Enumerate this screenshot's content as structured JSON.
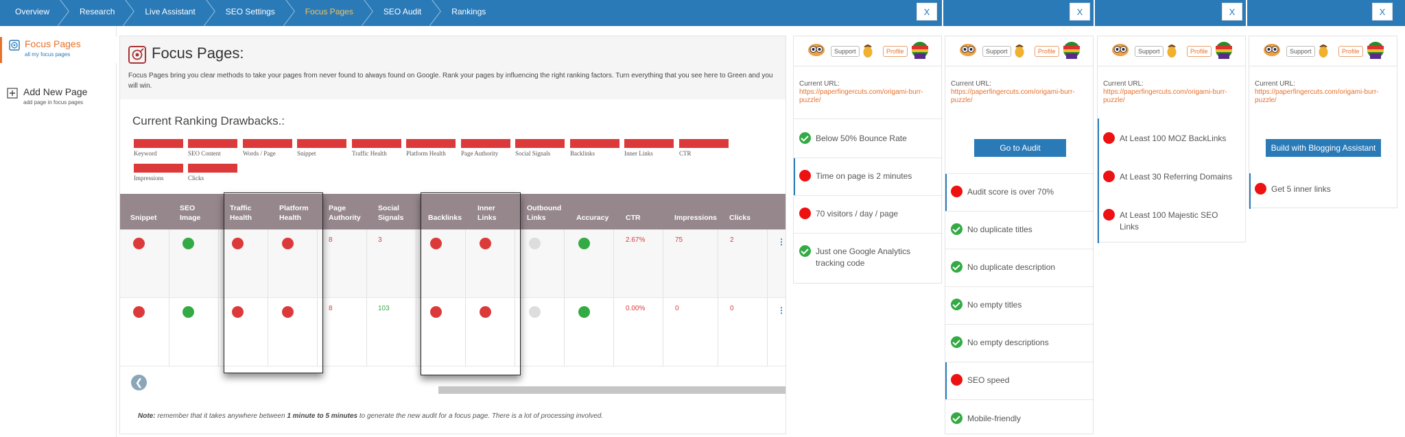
{
  "breadcrumb": [
    "Overview",
    "Research",
    "Live Assistant",
    "SEO Settings",
    "Focus Pages",
    "SEO Audit",
    "Rankings"
  ],
  "breadcrumb_active_index": 4,
  "close_label": "X",
  "sidebar": {
    "items": [
      {
        "title": "Focus Pages",
        "subtitle": "all my focus pages",
        "icon": "target-icon"
      },
      {
        "title": "Add New Page",
        "subtitle": "add page in focus pages",
        "icon": "plus-icon"
      }
    ]
  },
  "main": {
    "title": "Focus Pages:",
    "description": "Focus Pages bring you clear methods to take your pages from never found to always found on Google. Rank your pages by influencing the right ranking factors. Turn everything that you see here to Green and you will win.",
    "drawbacks_title": "Current Ranking Drawbacks.:",
    "legend": [
      "Keyword",
      "SEO Content",
      "Words / Page",
      "Snippet",
      "Traffic Health",
      "Platform Health",
      "Page Authority",
      "Social Signals",
      "Backlinks",
      "Inner Links",
      "CTR",
      "Impressions",
      "Clicks"
    ],
    "table": {
      "headers": [
        "Snippet",
        "SEO Image",
        "Traffic Health",
        "Platform Health",
        "Page Authority",
        "Social Signals",
        "Backlinks",
        "Inner Links",
        "Outbound Links",
        "Accuracy",
        "CTR",
        "Impressions",
        "Clicks"
      ],
      "rows": [
        {
          "snippet": "red",
          "seo_image": "green",
          "traffic_health": "red",
          "platform_health": "red",
          "page_authority": "8",
          "social_signals": "3",
          "social_signals_color": "red",
          "backlinks": "red",
          "inner_links": "red",
          "outbound_links": "grey",
          "accuracy": "green",
          "ctr": "2.67%",
          "impressions": "75",
          "clicks": "2"
        },
        {
          "snippet": "red",
          "seo_image": "green",
          "traffic_health": "red",
          "platform_health": "red",
          "page_authority": "8",
          "social_signals": "103",
          "social_signals_color": "green",
          "backlinks": "red",
          "inner_links": "red",
          "outbound_links": "grey",
          "accuracy": "green",
          "ctr": "0.00%",
          "impressions": "0",
          "clicks": "0"
        }
      ]
    },
    "note_label": "Note:",
    "note_part1": " remember that it takes anywhere between ",
    "note_bold": "1 minute to 5 minutes",
    "note_part2": " to generate the new audit for a focus page. There is a lot of processing involved."
  },
  "cards": {
    "support_label": "Support",
    "profile_label": "Profile",
    "url_label": "Current URL:",
    "url": "https://paperfingercuts.com/origami-burr-puzzle/",
    "card1": {
      "checks": [
        {
          "status": "green",
          "text": "Below 50% Bounce Rate"
        },
        {
          "status": "red",
          "text": "Time on page is 2 minutes"
        },
        {
          "status": "red",
          "text": "70 visitors / day / page"
        },
        {
          "status": "green",
          "text": "Just one Google Analytics",
          "text2": "tracking code"
        }
      ]
    },
    "card2": {
      "button": "Go to Audit",
      "checks": [
        {
          "status": "red",
          "text": "Audit score is over 70%"
        },
        {
          "status": "green",
          "text": "No duplicate titles"
        },
        {
          "status": "green",
          "text": "No duplicate description"
        },
        {
          "status": "green",
          "text": "No empty titles"
        },
        {
          "status": "green",
          "text": "No empty descriptions"
        },
        {
          "status": "red",
          "text": "SEO speed"
        },
        {
          "status": "green",
          "text": "Mobile-friendly"
        }
      ]
    },
    "card3": {
      "checks": [
        {
          "status": "red",
          "text": "At Least 100 MOZ BackLinks"
        },
        {
          "status": "red",
          "text": "At Least 30 Referring Domains"
        },
        {
          "status": "red",
          "text": "At Least 100 Majestic SEO",
          "text2": "Links"
        }
      ]
    },
    "card4": {
      "button": "Build with Blogging Assistant",
      "checks": [
        {
          "status": "red",
          "text": "Get 5 inner links"
        }
      ]
    }
  }
}
